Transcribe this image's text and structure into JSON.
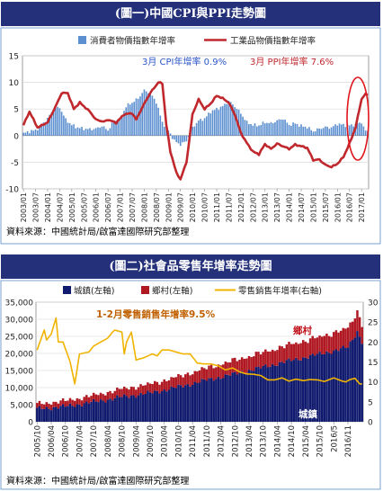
{
  "colors": {
    "title_bg": "#24307a",
    "cpi_bar": "#5b8fd0",
    "ppi_line": "#c0282d",
    "urban": "#101a6e",
    "rural": "#b01822",
    "retail_line": "#f0b400",
    "cpi_note": "#2a55c8",
    "ppi_note": "#c0282d",
    "retail_note": "#c06000"
  },
  "chart1": {
    "title": "(圖一)中國CPI與PPI走勢圖",
    "source": "資料來源：中國統計局/啟富達國際研究部整理",
    "legend": {
      "cpi": "消費者物價指數年增率",
      "ppi": "工業品物價指數年增率"
    },
    "annotation": {
      "cpi": "3月 CPI年增率 0.9%",
      "ppi": "3月 PPI年增率 7.6%"
    },
    "chart_data": {
      "type": "bar+line",
      "y_ticks": [
        "15",
        "10",
        "5",
        "0",
        "-5",
        "-10"
      ],
      "ylim": [
        -10,
        15
      ],
      "x_ticks": [
        "2003/01",
        "2003/07",
        "2004/01",
        "2004/07",
        "2005/01",
        "2005/07",
        "2006/01",
        "2006/07",
        "2007/01",
        "2007/07",
        "2008/01",
        "2008/07",
        "2009/01",
        "2009/07",
        "2010/01",
        "2010/07",
        "2011/01",
        "2011/07",
        "2012/01",
        "2012/07",
        "2013/01",
        "2013/07",
        "2014/01",
        "2014/07",
        "2015/01",
        "2015/07",
        "2016/01",
        "2016/07",
        "2017/01"
      ],
      "series": [
        {
          "name": "消費者物價指數年增率",
          "type": "bar",
          "key_points": [
            [
              0,
              0.4
            ],
            [
              3,
              0.8
            ],
            [
              6,
              1.0
            ],
            [
              9,
              2.0
            ],
            [
              12,
              3.2
            ],
            [
              15,
              5.0
            ],
            [
              18,
              5.3
            ],
            [
              21,
              3.0
            ],
            [
              24,
              2.0
            ],
            [
              27,
              1.5
            ],
            [
              30,
              1.3
            ],
            [
              33,
              1.2
            ],
            [
              36,
              1.3
            ],
            [
              39,
              1.8
            ],
            [
              42,
              1.0
            ],
            [
              45,
              2.7
            ],
            [
              48,
              3.0
            ],
            [
              51,
              5.5
            ],
            [
              54,
              6.2
            ],
            [
              57,
              7.0
            ],
            [
              60,
              8.5
            ],
            [
              63,
              8.0
            ],
            [
              66,
              6.3
            ],
            [
              69,
              2.5
            ],
            [
              72,
              1.0
            ],
            [
              75,
              -1.0
            ],
            [
              78,
              -1.7
            ],
            [
              81,
              -1.0
            ],
            [
              84,
              1.5
            ],
            [
              87,
              2.8
            ],
            [
              90,
              3.2
            ],
            [
              93,
              4.5
            ],
            [
              96,
              5.0
            ],
            [
              99,
              5.5
            ],
            [
              102,
              6.5
            ],
            [
              105,
              5.5
            ],
            [
              108,
              4.2
            ],
            [
              111,
              2.5
            ],
            [
              114,
              2.0
            ],
            [
              117,
              1.9
            ],
            [
              120,
              2.5
            ],
            [
              123,
              2.3
            ],
            [
              126,
              2.8
            ],
            [
              129,
              3.2
            ],
            [
              132,
              2.0
            ],
            [
              135,
              2.3
            ],
            [
              138,
              1.8
            ],
            [
              141,
              1.6
            ],
            [
              144,
              0.8
            ],
            [
              147,
              1.3
            ],
            [
              150,
              1.6
            ],
            [
              153,
              1.5
            ],
            [
              156,
              2.2
            ],
            [
              159,
              2.0
            ],
            [
              162,
              1.9
            ],
            [
              165,
              2.1
            ],
            [
              168,
              2.5
            ],
            [
              170,
              0.8
            ],
            [
              171,
              0.9
            ]
          ]
        },
        {
          "name": "工業品物價指數年增率",
          "type": "line",
          "key_points": [
            [
              0,
              2.0
            ],
            [
              3,
              4.5
            ],
            [
              7,
              1.5
            ],
            [
              12,
              2.5
            ],
            [
              16,
              5.5
            ],
            [
              19,
              8.0
            ],
            [
              22,
              8.0
            ],
            [
              25,
              5.0
            ],
            [
              28,
              6.2
            ],
            [
              33,
              4.5
            ],
            [
              36,
              3.0
            ],
            [
              40,
              2.6
            ],
            [
              42,
              3.0
            ],
            [
              46,
              2.4
            ],
            [
              50,
              4.0
            ],
            [
              54,
              4.2
            ],
            [
              56,
              3.0
            ],
            [
              60,
              6.0
            ],
            [
              63,
              8.0
            ],
            [
              67,
              10.0
            ],
            [
              69,
              9.8
            ],
            [
              71,
              2.0
            ],
            [
              73,
              -3.0
            ],
            [
              76,
              -7.0
            ],
            [
              78,
              -8.2
            ],
            [
              81,
              -5.0
            ],
            [
              84,
              4.0
            ],
            [
              87,
              6.8
            ],
            [
              90,
              5.0
            ],
            [
              93,
              6.0
            ],
            [
              96,
              7.5
            ],
            [
              99,
              7.0
            ],
            [
              102,
              6.2
            ],
            [
              105,
              4.0
            ],
            [
              108,
              0.5
            ],
            [
              111,
              -1.4
            ],
            [
              114,
              -3.0
            ],
            [
              117,
              -3.5
            ],
            [
              120,
              -1.6
            ],
            [
              123,
              -2.5
            ],
            [
              126,
              -1.5
            ],
            [
              129,
              -2.0
            ],
            [
              132,
              -2.5
            ],
            [
              135,
              -1.7
            ],
            [
              138,
              -2.0
            ],
            [
              141,
              -2.3
            ],
            [
              144,
              -4.6
            ],
            [
              147,
              -4.5
            ],
            [
              150,
              -5.5
            ],
            [
              153,
              -5.9
            ],
            [
              156,
              -5.3
            ],
            [
              159,
              -4.0
            ],
            [
              162,
              -1.5
            ],
            [
              165,
              1.5
            ],
            [
              168,
              6.9
            ],
            [
              170,
              7.8
            ],
            [
              171,
              7.6
            ]
          ]
        }
      ]
    }
  },
  "chart2": {
    "title": "(圖二)社會品零售年增率走勢圖",
    "source": "資料來源：中國統計局/啟富達國際研究部整理",
    "legend": {
      "urban": "城鎮(左軸)",
      "rural": "鄉村(左軸)",
      "retail": "零售銷售年增率(右軸)"
    },
    "annotation": "1-2月零售銷售年增率9.5%",
    "label_rural": "鄉村",
    "label_urban": "城鎮",
    "chart_data": {
      "type": "stacked-bar+line",
      "left_ticks": [
        "35,000",
        "30,000",
        "25,000",
        "20,000",
        "15,000",
        "10,000",
        "5,000",
        "0"
      ],
      "right_ticks": [
        "30",
        "25",
        "20",
        "15",
        "10",
        "5",
        "0"
      ],
      "ylim_left": [
        0,
        35000
      ],
      "ylim_right": [
        0,
        30
      ],
      "x_ticks": [
        "2005/10",
        "2006/04",
        "2006/10",
        "2007/04",
        "2007/10",
        "2008/04",
        "2008/10",
        "2009/04",
        "2009/10",
        "2010/04",
        "2010/10",
        "2011/04",
        "2011/10",
        "2012/04",
        "2012/10",
        "2013/04",
        "2013/10",
        "2014/04",
        "2014/10",
        "2015/04",
        "2015/10",
        "2016/5",
        "2016/11"
      ],
      "series": [
        {
          "name": "城鎮(左軸)",
          "type": "bar",
          "key_points": [
            [
              0,
              3800
            ],
            [
              12,
              4500
            ],
            [
              24,
              5800
            ],
            [
              36,
              7300
            ],
            [
              48,
              8400
            ],
            [
              60,
              10200
            ],
            [
              72,
              12200
            ],
            [
              84,
              14000
            ],
            [
              96,
              16000
            ],
            [
              108,
              18000
            ],
            [
              120,
              19800
            ],
            [
              132,
              21800
            ],
            [
              136,
              26500
            ],
            [
              138,
              23500
            ]
          ]
        },
        {
          "name": "鄉村(左軸)",
          "type": "bar",
          "key_points": [
            [
              0,
              1400
            ],
            [
              12,
              1600
            ],
            [
              24,
              1900
            ],
            [
              36,
              2300
            ],
            [
              48,
              2600
            ],
            [
              60,
              3000
            ],
            [
              72,
              3500
            ],
            [
              84,
              4000
            ],
            [
              96,
              4300
            ],
            [
              108,
              4700
            ],
            [
              120,
              5000
            ],
            [
              132,
              5500
            ],
            [
              136,
              5800
            ],
            [
              138,
              5000
            ]
          ]
        },
        {
          "name": "零售銷售年增率(右軸)",
          "type": "line",
          "key_points": [
            [
              0,
              18
            ],
            [
              3,
              23
            ],
            [
              4,
              20.5
            ],
            [
              6,
              22
            ],
            [
              8,
              26
            ],
            [
              9,
              20
            ],
            [
              11,
              20
            ],
            [
              14,
              15
            ],
            [
              16,
              9.5
            ],
            [
              18,
              17
            ],
            [
              22,
              17.5
            ],
            [
              24,
              19
            ],
            [
              27,
              20
            ],
            [
              30,
              21
            ],
            [
              32,
              22.5
            ],
            [
              33,
              23
            ],
            [
              36,
              22.5
            ],
            [
              37,
              17
            ],
            [
              38,
              20
            ],
            [
              40,
              22.5
            ],
            [
              42,
              15.5
            ],
            [
              45,
              16
            ],
            [
              49,
              17
            ],
            [
              51,
              16.5
            ],
            [
              53,
              18
            ],
            [
              56,
              18
            ],
            [
              59,
              17.5
            ],
            [
              62,
              17
            ],
            [
              65,
              17
            ],
            [
              67,
              15.5
            ],
            [
              68,
              14.7
            ],
            [
              71,
              14.5
            ],
            [
              74,
              14.5
            ],
            [
              77,
              14
            ],
            [
              80,
              13
            ],
            [
              83,
              13.5
            ],
            [
              86,
              12.5
            ],
            [
              89,
              12
            ],
            [
              92,
              11.9
            ],
            [
              95,
              11.6
            ],
            [
              98,
              10.5
            ],
            [
              101,
              10.5
            ],
            [
              104,
              11
            ],
            [
              107,
              10.2
            ],
            [
              110,
              10.7
            ],
            [
              113,
              10.3
            ],
            [
              116,
              10.6
            ],
            [
              119,
              10.5
            ],
            [
              122,
              10.1
            ],
            [
              126,
              11
            ],
            [
              129,
              10.3
            ],
            [
              131,
              10
            ],
            [
              133,
              10.6
            ],
            [
              135,
              10.9
            ],
            [
              137,
              9.5
            ],
            [
              138,
              9.5
            ]
          ]
        }
      ]
    }
  }
}
